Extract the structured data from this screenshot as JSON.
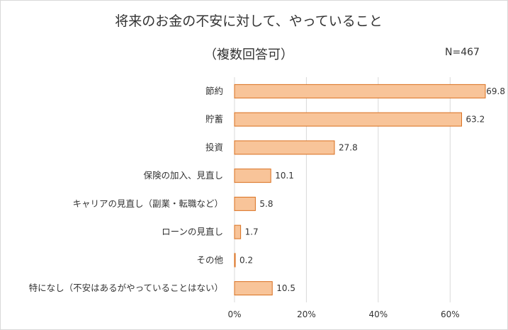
{
  "chart_data": {
    "type": "bar",
    "orientation": "horizontal",
    "title": "将来のお金の不安に対して、やっていること",
    "subtitle": "（複数回答可）",
    "note": "N=467",
    "categories": [
      "節約",
      "貯蓄",
      "投資",
      "保険の加入、見直し",
      "キャリアの見直し（副業・転職など）",
      "ローンの見直し",
      "その他",
      "特になし（不安はあるがやっていることはない）"
    ],
    "values": [
      69.8,
      63.2,
      27.8,
      10.1,
      5.8,
      1.7,
      0.2,
      10.5
    ],
    "value_labels": [
      "69.8",
      "63.2",
      "27.8",
      "10.1",
      "5.8",
      "1.7",
      "0.2",
      "10.5"
    ],
    "xlim": [
      0,
      70
    ],
    "xticks": [
      0,
      20,
      40,
      60
    ],
    "xtick_labels": [
      "0%",
      "20%",
      "40%",
      "60%"
    ],
    "grid": true,
    "bar_fill": "#f8c499",
    "bar_edge": "#d96f1e",
    "grid_color": "#d9d9d9"
  }
}
